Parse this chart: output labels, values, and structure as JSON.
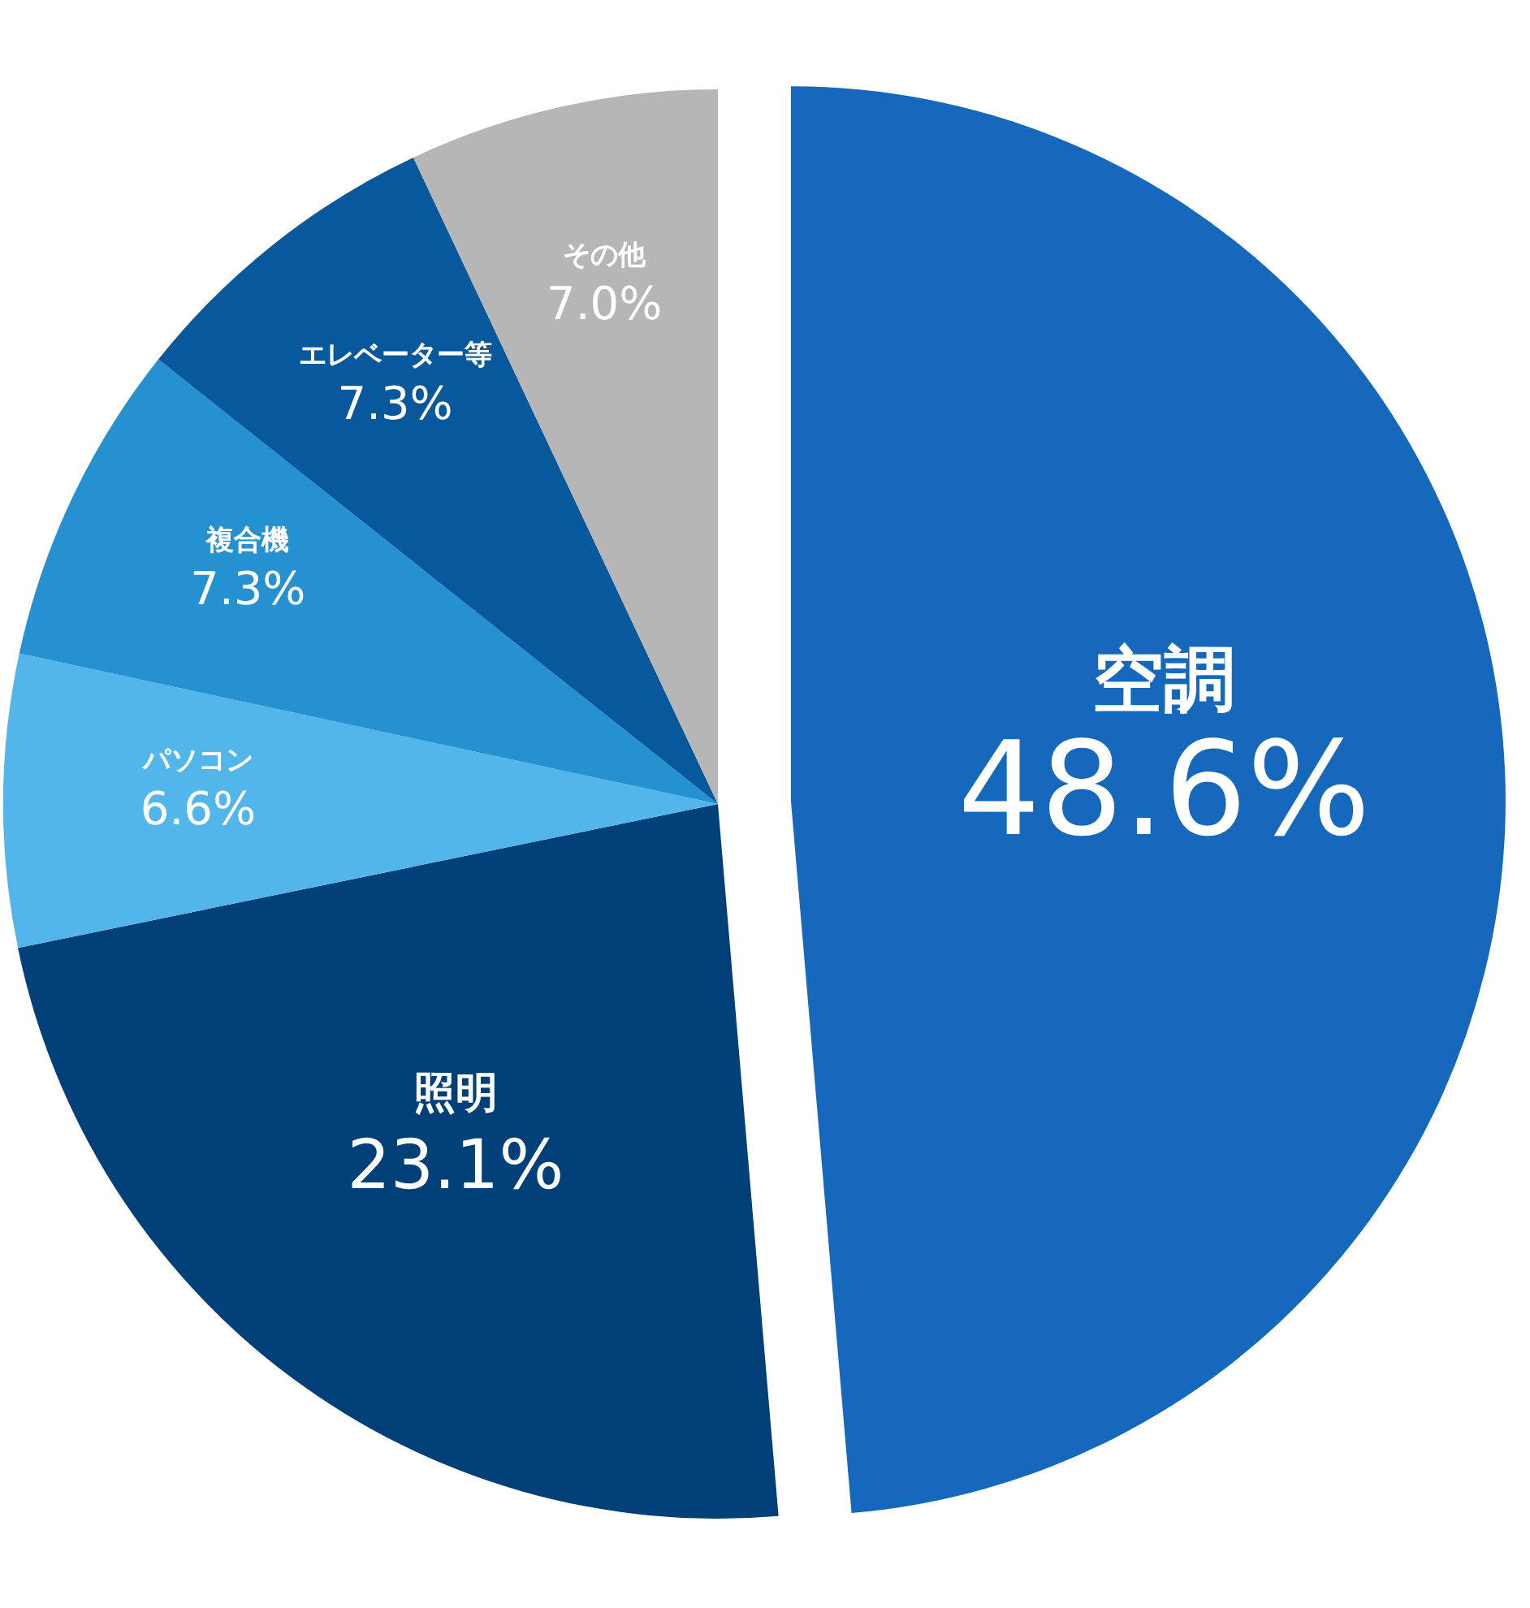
{
  "chart_data": {
    "type": "pie",
    "categories": [
      "空調",
      "照明",
      "パソコン",
      "複合機",
      "エレベーター等",
      "その他"
    ],
    "values": [
      48.6,
      23.1,
      6.6,
      7.3,
      7.3,
      7.0
    ],
    "colors": [
      "#1668bd",
      "#013f78",
      "#52b6ea",
      "#2591d0",
      "#07599b",
      "#b6b6b6"
    ],
    "value_labels": [
      "48.6%",
      "23.1%",
      "6.6%",
      "7.3%",
      "7.3%",
      "7.0%"
    ]
  }
}
